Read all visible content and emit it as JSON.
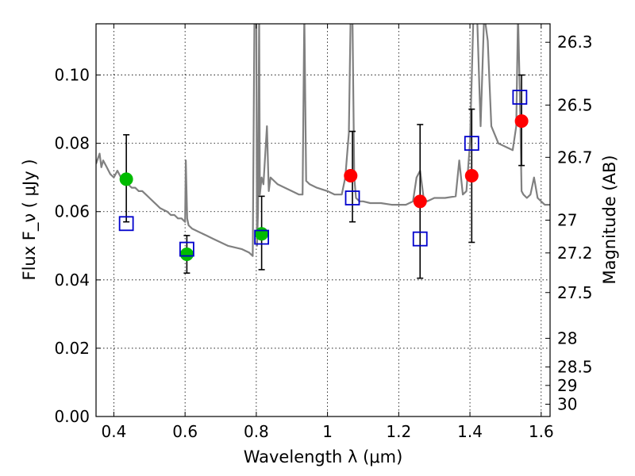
{
  "chart_data": {
    "type": "scatter",
    "xlabel": "Wavelength  λ (μm)",
    "ylabel": "Flux  F_ν  ( μJy )",
    "y2label": "Magnitude (AB)",
    "xlim": [
      0.35,
      1.625
    ],
    "ylim": [
      0.0,
      0.115
    ],
    "grid": true,
    "x_ticks": [
      0.4,
      0.6,
      0.8,
      1.0,
      1.2,
      1.4,
      1.6
    ],
    "x_tick_labels": [
      "0.4",
      "0.6",
      "0.8",
      "1",
      "1.2",
      "1.4",
      "1.6"
    ],
    "y_ticks": [
      0.0,
      0.02,
      0.04,
      0.06,
      0.08,
      0.1
    ],
    "y_tick_labels": [
      "0.00",
      "0.02",
      "0.04",
      "0.06",
      "0.08",
      "0.10"
    ],
    "y2_ticks": [
      {
        "label": "26.3",
        "flux": 0.1096
      },
      {
        "label": "26.5",
        "flux": 0.0912
      },
      {
        "label": "26.7",
        "flux": 0.0759
      },
      {
        "label": "27",
        "flux": 0.0575
      },
      {
        "label": "27.2",
        "flux": 0.0479
      },
      {
        "label": "27.5",
        "flux": 0.0363
      },
      {
        "label": "28",
        "flux": 0.0229
      },
      {
        "label": "28.5",
        "flux": 0.0145
      },
      {
        "label": "29",
        "flux": 0.0091
      },
      {
        "label": "30",
        "flux": 0.0036
      }
    ],
    "series": [
      {
        "kind": "line",
        "color": "#808080",
        "x": [
          0.35,
          0.36,
          0.365,
          0.37,
          0.38,
          0.39,
          0.4,
          0.41,
          0.42,
          0.43,
          0.44,
          0.45,
          0.46,
          0.47,
          0.48,
          0.49,
          0.5,
          0.51,
          0.52,
          0.53,
          0.54,
          0.55,
          0.56,
          0.57,
          0.58,
          0.59,
          0.6,
          0.602,
          0.604,
          0.606,
          0.608,
          0.61,
          0.62,
          0.64,
          0.66,
          0.68,
          0.7,
          0.72,
          0.74,
          0.76,
          0.78,
          0.79,
          0.795,
          0.8,
          0.802,
          0.805,
          0.808,
          0.81,
          0.815,
          0.82,
          0.83,
          0.835,
          0.84,
          0.85,
          0.86,
          0.88,
          0.9,
          0.92,
          0.93,
          0.935,
          0.94,
          0.95,
          0.97,
          1.0,
          1.02,
          1.04,
          1.05,
          1.06,
          1.065,
          1.07,
          1.075,
          1.08,
          1.09,
          1.1,
          1.12,
          1.15,
          1.18,
          1.2,
          1.22,
          1.24,
          1.25,
          1.26,
          1.27,
          1.28,
          1.3,
          1.33,
          1.36,
          1.37,
          1.38,
          1.39,
          1.4,
          1.41,
          1.42,
          1.43,
          1.44,
          1.45,
          1.46,
          1.48,
          1.5,
          1.52,
          1.53,
          1.535,
          1.54,
          1.545,
          1.55,
          1.56,
          1.57,
          1.58,
          1.59,
          1.6,
          1.61,
          1.625
        ],
        "y": [
          0.074,
          0.077,
          0.073,
          0.075,
          0.073,
          0.071,
          0.07,
          0.072,
          0.07,
          0.069,
          0.068,
          0.067,
          0.067,
          0.066,
          0.066,
          0.065,
          0.064,
          0.063,
          0.062,
          0.061,
          0.0605,
          0.06,
          0.059,
          0.059,
          0.058,
          0.058,
          0.057,
          0.075,
          0.066,
          0.058,
          0.057,
          0.056,
          0.055,
          0.054,
          0.053,
          0.052,
          0.051,
          0.05,
          0.0495,
          0.049,
          0.048,
          0.047,
          0.118,
          0.118,
          0.05,
          0.06,
          0.118,
          0.065,
          0.07,
          0.068,
          0.085,
          0.066,
          0.07,
          0.069,
          0.068,
          0.067,
          0.066,
          0.065,
          0.065,
          0.118,
          0.069,
          0.068,
          0.067,
          0.066,
          0.065,
          0.065,
          0.07,
          0.083,
          0.118,
          0.118,
          0.07,
          0.064,
          0.063,
          0.063,
          0.0625,
          0.0625,
          0.062,
          0.062,
          0.062,
          0.063,
          0.07,
          0.072,
          0.064,
          0.063,
          0.064,
          0.064,
          0.0645,
          0.075,
          0.065,
          0.066,
          0.08,
          0.118,
          0.118,
          0.085,
          0.118,
          0.11,
          0.085,
          0.08,
          0.079,
          0.078,
          0.085,
          0.118,
          0.095,
          0.066,
          0.065,
          0.064,
          0.065,
          0.07,
          0.064,
          0.063,
          0.062,
          0.062
        ]
      },
      {
        "kind": "markers",
        "marker": "circle",
        "color": "#00bb00",
        "x": [
          0.435,
          0.605,
          0.815
        ],
        "y": [
          0.0695,
          0.0475,
          0.0535
        ]
      },
      {
        "kind": "markers",
        "marker": "circle",
        "color": "#ff0000",
        "x": [
          1.065,
          1.26,
          1.405,
          1.545
        ],
        "y": [
          0.0705,
          0.063,
          0.0705,
          0.0865
        ]
      },
      {
        "kind": "markers",
        "marker": "open-square",
        "color": "#0000cc",
        "x": [
          0.435,
          0.605,
          0.815,
          1.07,
          1.26,
          1.405,
          1.54
        ],
        "y": [
          0.0565,
          0.049,
          0.0525,
          0.064,
          0.052,
          0.08,
          0.0935
        ]
      }
    ],
    "error_bars": [
      {
        "x": 0.435,
        "low": 0.057,
        "high": 0.0825
      },
      {
        "x": 0.605,
        "low": 0.042,
        "high": 0.053
      },
      {
        "x": 0.815,
        "low": 0.043,
        "high": 0.0645
      },
      {
        "x": 1.07,
        "low": 0.057,
        "high": 0.0835
      },
      {
        "x": 1.26,
        "low": 0.0405,
        "high": 0.0855
      },
      {
        "x": 1.405,
        "low": 0.051,
        "high": 0.09
      },
      {
        "x": 1.545,
        "low": 0.0735,
        "high": 0.1
      }
    ]
  }
}
